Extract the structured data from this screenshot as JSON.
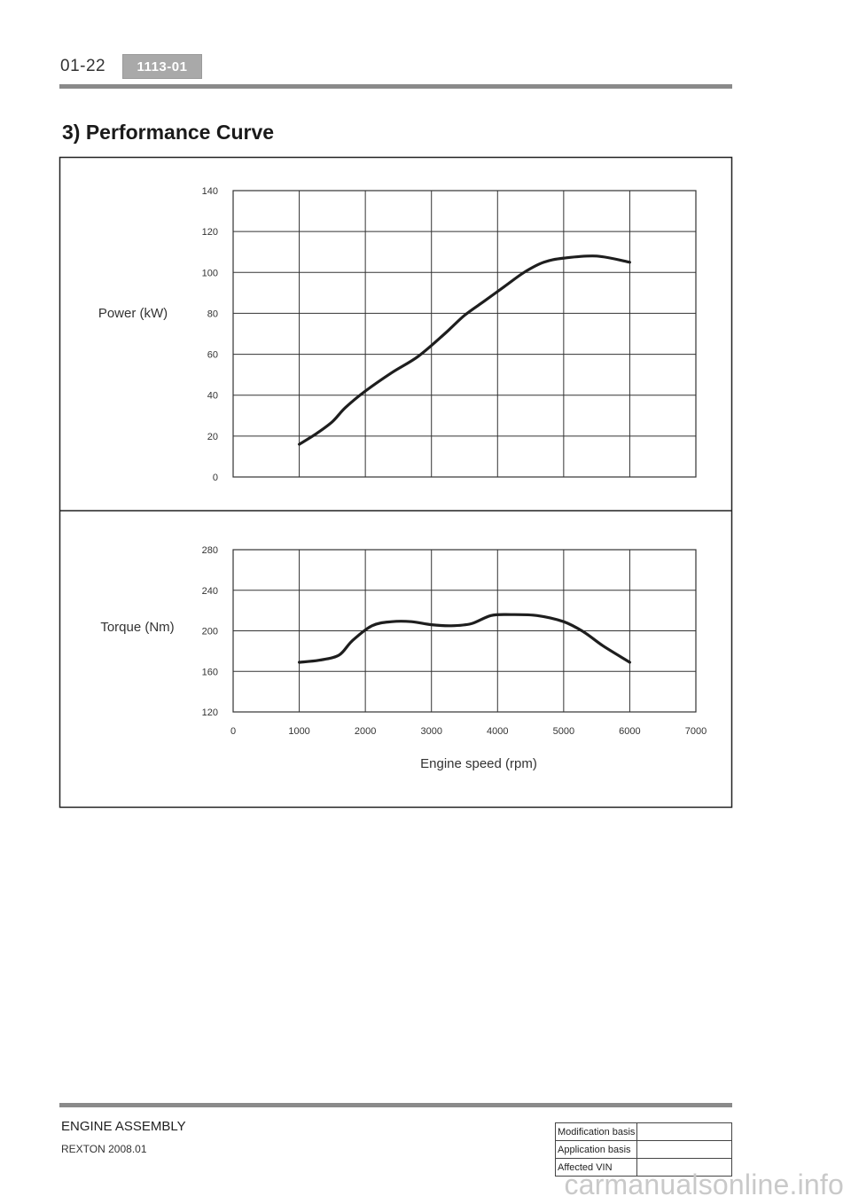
{
  "header": {
    "page_number": "01-22",
    "section_code": "1113-01"
  },
  "heading": "3) Performance Curve",
  "chart_data": [
    {
      "type": "line",
      "ylabel": "Power (kW)",
      "xlim": [
        0,
        7000
      ],
      "ylim": [
        0,
        140
      ],
      "yticks": [
        0,
        20,
        40,
        60,
        80,
        100,
        120,
        140
      ],
      "grid": true,
      "series": [
        {
          "x": [
            1000,
            1250,
            1500,
            1700,
            2000,
            2400,
            2800,
            3200,
            3500,
            3800,
            4100,
            4400,
            4700,
            5000,
            5500,
            6000
          ],
          "values": [
            16,
            21,
            27,
            34,
            42,
            51,
            59,
            70,
            79,
            86,
            93,
            100,
            105,
            107,
            108,
            105
          ]
        }
      ]
    },
    {
      "type": "line",
      "ylabel": "Torque (Nm)",
      "xlabel": "Engine speed (rpm)",
      "xlim": [
        0,
        7000
      ],
      "ylim": [
        120,
        280
      ],
      "yticks": [
        120,
        160,
        200,
        240,
        280
      ],
      "xticks": [
        0,
        1000,
        2000,
        3000,
        4000,
        5000,
        6000,
        7000
      ],
      "grid": true,
      "series": [
        {
          "x": [
            1000,
            1300,
            1600,
            1800,
            2100,
            2400,
            2700,
            3000,
            3300,
            3600,
            3900,
            4200,
            4600,
            5000,
            5300,
            5600,
            6000
          ],
          "values": [
            169,
            171,
            176,
            190,
            205,
            209,
            209,
            206,
            205,
            207,
            215,
            216,
            215,
            209,
            199,
            185,
            169
          ]
        }
      ]
    }
  ],
  "footer": {
    "title": "ENGINE ASSEMBLY",
    "subtitle": "REXTON 2008.01"
  },
  "modification_table": {
    "rows": [
      {
        "label": "Modification basis",
        "value": ""
      },
      {
        "label": "Application basis",
        "value": ""
      },
      {
        "label": "Affected VIN",
        "value": ""
      }
    ]
  },
  "watermark": "carmanualsonline.info"
}
